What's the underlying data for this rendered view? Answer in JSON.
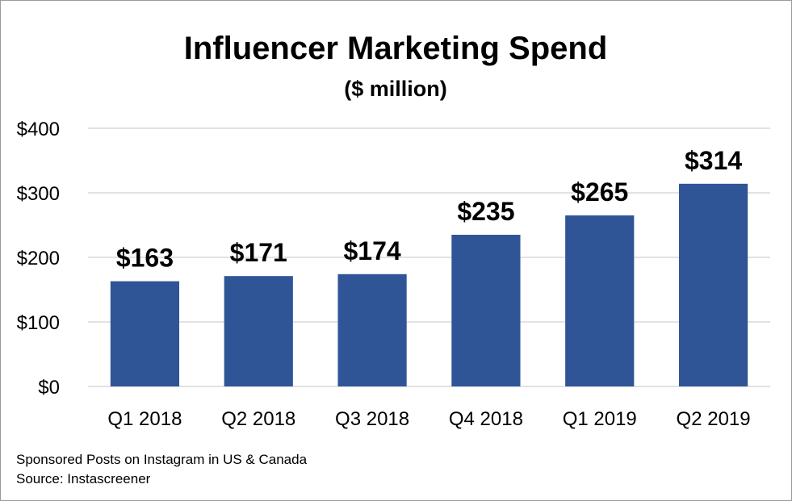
{
  "chart_data": {
    "type": "bar",
    "title": "Influencer Marketing Spend",
    "subtitle": "($ million)",
    "categories": [
      "Q1 2018",
      "Q2 2018",
      "Q3 2018",
      "Q4 2018",
      "Q1 2019",
      "Q2 2019"
    ],
    "values": [
      163,
      171,
      174,
      235,
      265,
      314
    ],
    "data_labels": [
      "$163",
      "$171",
      "$174",
      "$235",
      "$265",
      "$314"
    ],
    "y_ticks": [
      0,
      100,
      200,
      300,
      400
    ],
    "y_tick_labels": [
      "$0",
      "$100",
      "$200",
      "$300",
      "$400"
    ],
    "ylim": [
      0,
      400
    ],
    "xlabel": "",
    "ylabel": "",
    "grid": true,
    "legend": "none",
    "bar_color": "#2F5597",
    "grid_color": "#d9d9d9"
  },
  "footnotes": {
    "line1": "Sponsored Posts on Instagram in US & Canada",
    "line2": "Source: Instascreener"
  }
}
